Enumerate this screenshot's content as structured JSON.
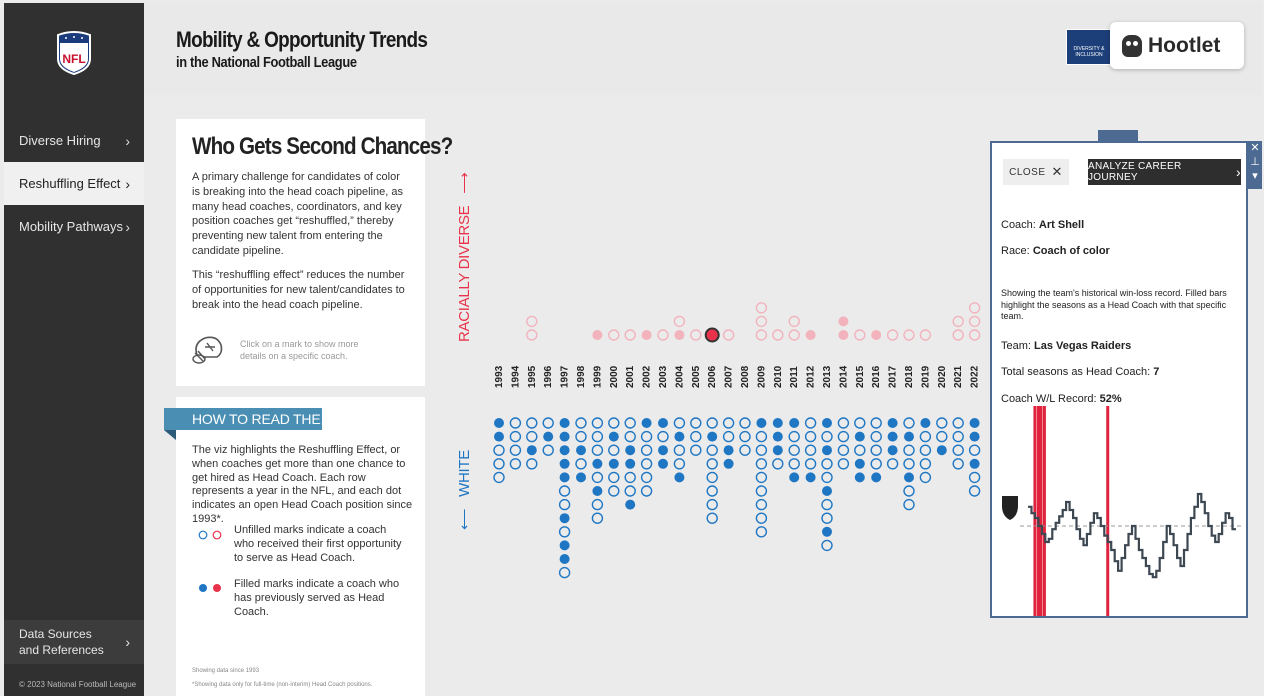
{
  "sidebar": {
    "items": [
      {
        "label": "Diverse Hiring",
        "active": false
      },
      {
        "label": "Reshuffling Effect",
        "active": true
      },
      {
        "label": "Mobility Pathways",
        "active": false
      }
    ],
    "sources_label": "Data Sources and References",
    "copyright": "© 2023 National Football League",
    "logo_text": "NFL"
  },
  "header": {
    "title": "Mobility & Opportunity Trends",
    "subtitle": "in the National Football League",
    "di_logo_text": "DIVERSITY & INCLUSION",
    "hootlet_label": "Hootlet"
  },
  "intro": {
    "heading": "Who Gets Second Chances?",
    "p1": "A primary challenge for candidates of color is breaking into the head coach pipeline, as many head coaches, coordinators, and key position coaches get “reshuffled,” thereby preventing new talent from entering the candidate pipeline.",
    "p2": "This “reshuffling effect” reduces the number of opportunities for new talent/candidates to break into the head coach pipeline.",
    "hint": "Click on a mark to show more details on a specific coach."
  },
  "howto": {
    "label": "HOW TO READ THE VIZ",
    "p1": "The viz highlights the Reshuffling Effect, or when coaches get more than one chance to get hired as Head Coach. Each row represents a year in the NFL, and each dot indicates an open Head Coach position since 1993*.",
    "legend_unfilled": "Unfilled marks indicate a coach who received their first opportunity to serve as Head Coach.",
    "legend_filled": "Filled marks indicate a coach who has previously served as Head Coach.",
    "note1": "Showing data since 1993",
    "note2": "*Showing data only for full-time (non-interim) Head Coach positions."
  },
  "viz": {
    "label_top": "RACIALLY DIVERSE",
    "label_bottom": "WHITE",
    "colors": {
      "blue": "#1f77c4",
      "red": "#e8334a",
      "pink": "#f2b3bd"
    }
  },
  "chart_data": {
    "type": "scatter",
    "description_free": true,
    "years": [
      "1993",
      "1994",
      "1995",
      "1996",
      "1997",
      "1998",
      "1999",
      "2000",
      "2001",
      "2002",
      "2003",
      "2004",
      "2005",
      "2006",
      "2007",
      "2008",
      "2009",
      "2010",
      "2011",
      "2012",
      "2013",
      "2014",
      "2015",
      "2016",
      "2017",
      "2018",
      "2019",
      "2020",
      "2021",
      "2022"
    ],
    "diverse": [
      [],
      [],
      [
        "o",
        "o"
      ],
      [],
      [],
      [],
      [
        "f"
      ],
      [
        "o"
      ],
      [
        "o"
      ],
      [
        "f"
      ],
      [
        "o"
      ],
      [
        "f",
        "o"
      ],
      [
        "o"
      ],
      [
        "F"
      ],
      [
        "o"
      ],
      [],
      [
        "o",
        "o",
        "o"
      ],
      [
        "o"
      ],
      [
        "o",
        "o"
      ],
      [
        "f"
      ],
      [],
      [
        "f",
        "f"
      ],
      [
        "o"
      ],
      [
        "f"
      ],
      [
        "o"
      ],
      [
        "o"
      ],
      [
        "o"
      ],
      [],
      [
        "o",
        "o"
      ],
      [
        "o",
        "o",
        "o"
      ]
    ],
    "white": [
      [
        "f",
        "f",
        "o",
        "o",
        "o"
      ],
      [
        "o",
        "o",
        "o",
        "o"
      ],
      [
        "o",
        "o",
        "f",
        "o"
      ],
      [
        "o",
        "f",
        "o"
      ],
      [
        "f",
        "f",
        "f",
        "f",
        "f",
        "o",
        "o",
        "f",
        "o",
        "f",
        "f",
        "o"
      ],
      [
        "o",
        "o",
        "f",
        "o",
        "f"
      ],
      [
        "o",
        "o",
        "o",
        "f",
        "o",
        "f",
        "o",
        "o"
      ],
      [
        "o",
        "f",
        "o",
        "f",
        "o",
        "o"
      ],
      [
        "o",
        "o",
        "f",
        "f",
        "o",
        "o",
        "f"
      ],
      [
        "f",
        "o",
        "o",
        "o",
        "o",
        "o"
      ],
      [
        "f",
        "o",
        "f",
        "f"
      ],
      [
        "o",
        "f",
        "o",
        "o",
        "f"
      ],
      [
        "o",
        "o",
        "o"
      ],
      [
        "o",
        "f",
        "o",
        "o",
        "o",
        "o",
        "o",
        "o"
      ],
      [
        "o",
        "o",
        "f",
        "f"
      ],
      [
        "o",
        "o",
        "o"
      ],
      [
        "f",
        "o",
        "o",
        "o",
        "o",
        "o",
        "o",
        "o",
        "o"
      ],
      [
        "f",
        "f",
        "f",
        "o"
      ],
      [
        "f",
        "o",
        "o",
        "o",
        "f"
      ],
      [
        "o",
        "o",
        "o",
        "o",
        "f"
      ],
      [
        "f",
        "o",
        "f",
        "o",
        "o",
        "f",
        "o",
        "o",
        "f",
        "o"
      ],
      [
        "o",
        "o",
        "o",
        "o"
      ],
      [
        "o",
        "f",
        "o",
        "f",
        "f"
      ],
      [
        "o",
        "o",
        "o",
        "o",
        "f"
      ],
      [
        "f",
        "f",
        "f",
        "o"
      ],
      [
        "o",
        "f",
        "o",
        "o",
        "f",
        "o",
        "o"
      ],
      [
        "f",
        "o",
        "o",
        "o",
        "o"
      ],
      [
        "o",
        "o",
        "f"
      ],
      [
        "o",
        "o",
        "o",
        "o"
      ],
      [
        "f",
        "f",
        "o",
        "f",
        "o",
        "o"
      ]
    ]
  },
  "panel": {
    "close_label": "CLOSE",
    "analyze_label": "ANALYZE CAREER JOURNEY",
    "coach_key": "Coach:",
    "coach": "Art Shell",
    "race_key": "Race:",
    "race": "Coach of color",
    "description": "Showing the team's historical win-loss record. Filled bars highlight the seasons as a Head Coach with that specific team.",
    "team_key": "Team:",
    "team": "Las Vegas Raiders",
    "seasons_key": "Total seasons as Head Coach:",
    "seasons": "7",
    "wl_key": "Coach W/L Record:",
    "wl": "52%",
    "winloss_series": [
      0.62,
      0.58,
      0.55,
      0.5,
      0.45,
      0.4,
      0.42,
      0.48,
      0.52,
      0.56,
      0.6,
      0.65,
      0.6,
      0.55,
      0.48,
      0.42,
      0.38,
      0.45,
      0.52,
      0.58,
      0.55,
      0.5,
      0.44,
      0.4,
      0.35,
      0.28,
      0.22,
      0.3,
      0.38,
      0.45,
      0.5,
      0.42,
      0.35,
      0.3,
      0.25,
      0.2,
      0.18,
      0.22,
      0.3,
      0.4,
      0.5,
      0.45,
      0.38,
      0.3,
      0.25,
      0.35,
      0.45,
      0.55,
      0.62,
      0.7,
      0.65,
      0.58,
      0.5,
      0.44,
      0.4,
      0.45,
      0.52,
      0.58,
      0.55,
      0.48
    ],
    "highlight_indices": [
      2,
      3,
      23
    ]
  }
}
